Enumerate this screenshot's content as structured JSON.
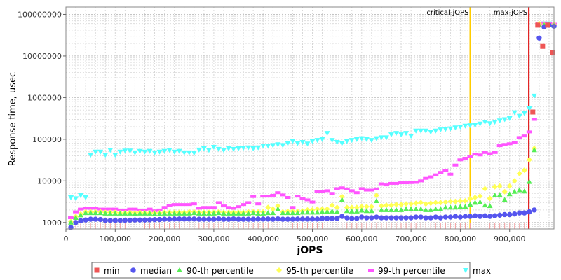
{
  "chart_data": {
    "type": "scatter",
    "title": "",
    "xlabel": "jOPS",
    "ylabel": "Response time, usec",
    "x_scale": "linear",
    "y_scale": "log",
    "xlim": [
      0,
      990000
    ],
    "ylim": [
      700,
      150000000
    ],
    "x_ticks": [
      0,
      100000,
      200000,
      300000,
      400000,
      500000,
      600000,
      700000,
      800000,
      900000
    ],
    "x_tick_labels": [
      "0",
      "100,000",
      "200,000",
      "300,000",
      "400,000",
      "500,000",
      "600,000",
      "700,000",
      "800,000",
      "900,000"
    ],
    "y_ticks": [
      1000,
      10000,
      100000,
      1000000,
      10000000,
      100000000
    ],
    "y_tick_labels": [
      "1000",
      "10000",
      "100000",
      "1000000",
      "10000000",
      "100000000"
    ],
    "grid": true,
    "legend_position": "bottom",
    "markers": [
      {
        "name": "critical-jOPS",
        "x": 820000,
        "color": "#ffcc00"
      },
      {
        "name": "max-jOPS",
        "x": 939000,
        "color": "#dd0000"
      }
    ],
    "series": [
      {
        "name": "min",
        "shape": "square",
        "color": "#ee5555",
        "x": [
          947000,
          957000,
          967000,
          977000,
          987000
        ],
        "y": [
          450000,
          55000000,
          17000000,
          55000000,
          12000000
        ]
      },
      {
        "name": "median",
        "shape": "circle",
        "color": "#5555ee",
        "x": [
          10000,
          20000,
          30000,
          40000,
          50000,
          60000,
          70000,
          80000,
          90000,
          100000,
          110000,
          120000,
          130000,
          140000,
          150000,
          160000,
          170000,
          180000,
          190000,
          200000,
          210000,
          220000,
          230000,
          240000,
          250000,
          260000,
          270000,
          280000,
          290000,
          300000,
          310000,
          320000,
          330000,
          340000,
          350000,
          360000,
          370000,
          380000,
          390000,
          400000,
          410000,
          420000,
          430000,
          440000,
          450000,
          460000,
          470000,
          480000,
          490000,
          500000,
          510000,
          520000,
          530000,
          540000,
          550000,
          560000,
          570000,
          580000,
          590000,
          600000,
          610000,
          620000,
          630000,
          640000,
          650000,
          660000,
          670000,
          680000,
          690000,
          700000,
          710000,
          720000,
          730000,
          740000,
          750000,
          760000,
          770000,
          780000,
          790000,
          800000,
          810000,
          820000,
          830000,
          840000,
          850000,
          860000,
          870000,
          880000,
          890000,
          900000,
          910000,
          920000,
          930000,
          940000,
          950000,
          960000,
          970000,
          980000,
          990000
        ],
        "y": [
          760,
          1000,
          1100,
          1150,
          1200,
          1200,
          1180,
          1120,
          1120,
          1120,
          1120,
          1130,
          1140,
          1150,
          1150,
          1150,
          1160,
          1170,
          1180,
          1200,
          1200,
          1210,
          1210,
          1210,
          1210,
          1210,
          1200,
          1200,
          1200,
          1200,
          1220,
          1200,
          1200,
          1220,
          1200,
          1200,
          1200,
          1200,
          1210,
          1210,
          1210,
          1200,
          1220,
          1200,
          1200,
          1200,
          1210,
          1210,
          1210,
          1210,
          1210,
          1250,
          1250,
          1250,
          1250,
          1400,
          1300,
          1250,
          1250,
          1350,
          1300,
          1300,
          1350,
          1300,
          1300,
          1300,
          1300,
          1300,
          1300,
          1300,
          1350,
          1350,
          1300,
          1300,
          1350,
          1300,
          1350,
          1350,
          1400,
          1350,
          1400,
          1400,
          1450,
          1400,
          1450,
          1400,
          1450,
          1500,
          1550,
          1550,
          1600,
          1700,
          1700,
          1800,
          2000,
          27000000,
          50000000,
          55000000,
          52000000
        ]
      },
      {
        "name": "90-th percentile",
        "shape": "triangle-up",
        "color": "#55ee55",
        "x": [
          10000,
          20000,
          30000,
          40000,
          50000,
          60000,
          70000,
          80000,
          90000,
          100000,
          110000,
          120000,
          130000,
          140000,
          150000,
          160000,
          170000,
          180000,
          190000,
          200000,
          210000,
          220000,
          230000,
          240000,
          250000,
          260000,
          270000,
          280000,
          290000,
          300000,
          310000,
          320000,
          330000,
          340000,
          350000,
          360000,
          370000,
          380000,
          390000,
          400000,
          410000,
          420000,
          430000,
          440000,
          450000,
          460000,
          470000,
          480000,
          490000,
          500000,
          510000,
          520000,
          530000,
          540000,
          550000,
          560000,
          570000,
          580000,
          590000,
          600000,
          610000,
          620000,
          630000,
          640000,
          650000,
          660000,
          670000,
          680000,
          690000,
          700000,
          710000,
          720000,
          730000,
          740000,
          750000,
          760000,
          770000,
          780000,
          790000,
          800000,
          810000,
          820000,
          830000,
          840000,
          850000,
          860000,
          870000,
          880000,
          890000,
          900000,
          910000,
          920000,
          930000,
          940000,
          950000,
          960000,
          970000,
          980000,
          990000
        ],
        "y": [
          1000,
          1300,
          1500,
          1700,
          1700,
          1700,
          1700,
          1650,
          1650,
          1650,
          1650,
          1650,
          1650,
          1600,
          1650,
          1650,
          1650,
          1600,
          1600,
          1650,
          1650,
          1650,
          1650,
          1650,
          1650,
          1700,
          1650,
          1650,
          1650,
          1650,
          1700,
          1650,
          1650,
          1650,
          1650,
          1650,
          1650,
          1700,
          1650,
          1650,
          1700,
          1700,
          2100,
          1700,
          1700,
          1700,
          1700,
          1750,
          1750,
          1750,
          1750,
          1800,
          1800,
          1850,
          1800,
          3500,
          1900,
          1850,
          1850,
          1950,
          1900,
          1900,
          3300,
          2000,
          2000,
          2000,
          2000,
          2000,
          2100,
          2100,
          2100,
          2100,
          2000,
          2000,
          2100,
          2100,
          2300,
          2300,
          2300,
          2400,
          2400,
          2700,
          3000,
          3100,
          2600,
          2500,
          4500,
          4600,
          3500,
          4800,
          5500,
          6000,
          5600,
          9500,
          55000,
          55000000,
          55000000,
          56000000,
          54000000
        ]
      },
      {
        "name": "95-th percentile",
        "shape": "diamond",
        "color": "#ffff55",
        "x": [
          10000,
          20000,
          30000,
          40000,
          50000,
          60000,
          70000,
          80000,
          90000,
          100000,
          110000,
          120000,
          130000,
          140000,
          150000,
          160000,
          170000,
          180000,
          190000,
          200000,
          210000,
          220000,
          230000,
          240000,
          250000,
          260000,
          270000,
          280000,
          290000,
          300000,
          310000,
          320000,
          330000,
          340000,
          350000,
          360000,
          370000,
          380000,
          390000,
          400000,
          410000,
          420000,
          430000,
          440000,
          450000,
          460000,
          470000,
          480000,
          490000,
          500000,
          510000,
          520000,
          530000,
          540000,
          550000,
          560000,
          570000,
          580000,
          590000,
          600000,
          610000,
          620000,
          630000,
          640000,
          650000,
          660000,
          670000,
          680000,
          690000,
          700000,
          710000,
          720000,
          730000,
          740000,
          750000,
          760000,
          770000,
          780000,
          790000,
          800000,
          810000,
          820000,
          830000,
          840000,
          850000,
          860000,
          870000,
          880000,
          890000,
          900000,
          910000,
          920000,
          930000,
          940000,
          950000,
          960000,
          970000,
          980000,
          990000
        ],
        "y": [
          1050,
          1400,
          1600,
          1800,
          1800,
          1800,
          1800,
          1750,
          1750,
          1750,
          1700,
          1700,
          1750,
          1700,
          1750,
          1700,
          1700,
          1700,
          1700,
          1750,
          1750,
          1750,
          1750,
          1750,
          1800,
          1800,
          1750,
          1750,
          1750,
          1750,
          1800,
          1750,
          1750,
          1750,
          1750,
          1750,
          1800,
          1800,
          1800,
          1800,
          2300,
          2100,
          2500,
          1800,
          1850,
          1850,
          1850,
          1900,
          2000,
          2000,
          2100,
          2100,
          2100,
          2600,
          2300,
          4200,
          2300,
          2300,
          2300,
          2400,
          2400,
          2400,
          4500,
          2500,
          2600,
          2600,
          2700,
          2700,
          2800,
          2800,
          2900,
          3000,
          2800,
          2900,
          3000,
          3000,
          3100,
          3200,
          3200,
          3300,
          3300,
          3700,
          4000,
          4300,
          6500,
          3800,
          7200,
          7500,
          5500,
          7500,
          10000,
          15000,
          18000,
          32000,
          60000,
          60000000,
          55000000,
          58000000,
          57000000
        ]
      },
      {
        "name": "99-th percentile",
        "shape": "bar",
        "color": "#ff55ff",
        "x": [
          10000,
          20000,
          30000,
          40000,
          50000,
          60000,
          70000,
          80000,
          90000,
          100000,
          110000,
          120000,
          130000,
          140000,
          150000,
          160000,
          170000,
          180000,
          190000,
          200000,
          210000,
          220000,
          230000,
          240000,
          250000,
          260000,
          270000,
          280000,
          290000,
          300000,
          310000,
          320000,
          330000,
          340000,
          350000,
          360000,
          370000,
          380000,
          390000,
          400000,
          410000,
          420000,
          430000,
          440000,
          450000,
          460000,
          470000,
          480000,
          490000,
          500000,
          510000,
          520000,
          530000,
          540000,
          550000,
          560000,
          570000,
          580000,
          590000,
          600000,
          610000,
          620000,
          630000,
          640000,
          650000,
          660000,
          670000,
          680000,
          690000,
          700000,
          710000,
          720000,
          730000,
          740000,
          750000,
          760000,
          770000,
          780000,
          790000,
          800000,
          810000,
          820000,
          830000,
          840000,
          850000,
          860000,
          870000,
          880000,
          890000,
          900000,
          910000,
          920000,
          930000,
          940000,
          950000,
          960000,
          970000,
          980000,
          990000
        ],
        "y": [
          1300,
          1800,
          2100,
          2200,
          2200,
          2200,
          2100,
          2100,
          2100,
          2100,
          2000,
          2000,
          2100,
          2100,
          2000,
          2000,
          2100,
          1900,
          2000,
          2300,
          2600,
          2700,
          2700,
          2700,
          2700,
          2800,
          2200,
          2300,
          2300,
          2300,
          3000,
          2500,
          2300,
          2200,
          2400,
          2700,
          3000,
          4200,
          2800,
          4300,
          4300,
          4500,
          5200,
          4600,
          4000,
          2300,
          4300,
          3800,
          3500,
          3100,
          5500,
          5600,
          5800,
          5000,
          6500,
          6800,
          6400,
          5800,
          5200,
          6500,
          6000,
          6000,
          6400,
          8500,
          8000,
          8700,
          8700,
          9000,
          9000,
          9100,
          9200,
          10000,
          11500,
          12500,
          14000,
          16000,
          17500,
          14500,
          24000,
          32000,
          35000,
          38000,
          44000,
          42000,
          48000,
          45000,
          48000,
          70000,
          75000,
          78000,
          85000,
          110000,
          120000,
          150000,
          300000,
          60000000,
          62000000,
          60000000,
          58000000
        ]
      },
      {
        "name": "max",
        "shape": "triangle-down",
        "color": "#55ffff",
        "x": [
          10000,
          20000,
          30000,
          40000,
          50000,
          60000,
          70000,
          80000,
          90000,
          100000,
          110000,
          120000,
          130000,
          140000,
          150000,
          160000,
          170000,
          180000,
          190000,
          200000,
          210000,
          220000,
          230000,
          240000,
          250000,
          260000,
          270000,
          280000,
          290000,
          300000,
          310000,
          320000,
          330000,
          340000,
          350000,
          360000,
          370000,
          380000,
          390000,
          400000,
          410000,
          420000,
          430000,
          440000,
          450000,
          460000,
          470000,
          480000,
          490000,
          500000,
          510000,
          520000,
          530000,
          540000,
          550000,
          560000,
          570000,
          580000,
          590000,
          600000,
          610000,
          620000,
          630000,
          640000,
          650000,
          660000,
          670000,
          680000,
          690000,
          700000,
          710000,
          720000,
          730000,
          740000,
          750000,
          760000,
          770000,
          780000,
          790000,
          800000,
          810000,
          820000,
          830000,
          840000,
          850000,
          860000,
          870000,
          880000,
          890000,
          900000,
          910000,
          920000,
          930000,
          940000,
          950000,
          960000,
          970000,
          980000,
          990000
        ],
        "y": [
          4000,
          3800,
          4500,
          4000,
          42000,
          50000,
          50000,
          42000,
          55000,
          42000,
          50000,
          53000,
          53000,
          48000,
          52000,
          50000,
          52000,
          48000,
          50000,
          52000,
          55000,
          50000,
          52000,
          48000,
          48000,
          47000,
          56000,
          60000,
          55000,
          65000,
          58000,
          55000,
          60000,
          58000,
          60000,
          62000,
          63000,
          60000,
          63000,
          70000,
          70000,
          72000,
          75000,
          72000,
          80000,
          90000,
          80000,
          85000,
          78000,
          90000,
          95000,
          100000,
          140000,
          95000,
          85000,
          80000,
          90000,
          95000,
          100000,
          105000,
          100000,
          95000,
          105000,
          110000,
          110000,
          130000,
          140000,
          130000,
          140000,
          120000,
          160000,
          160000,
          160000,
          150000,
          160000,
          170000,
          175000,
          180000,
          190000,
          200000,
          210000,
          215000,
          220000,
          235000,
          260000,
          240000,
          260000,
          280000,
          300000,
          320000,
          440000,
          360000,
          420000,
          550000,
          1100000,
          58000000,
          60000000,
          60000000,
          55000000
        ]
      }
    ]
  }
}
